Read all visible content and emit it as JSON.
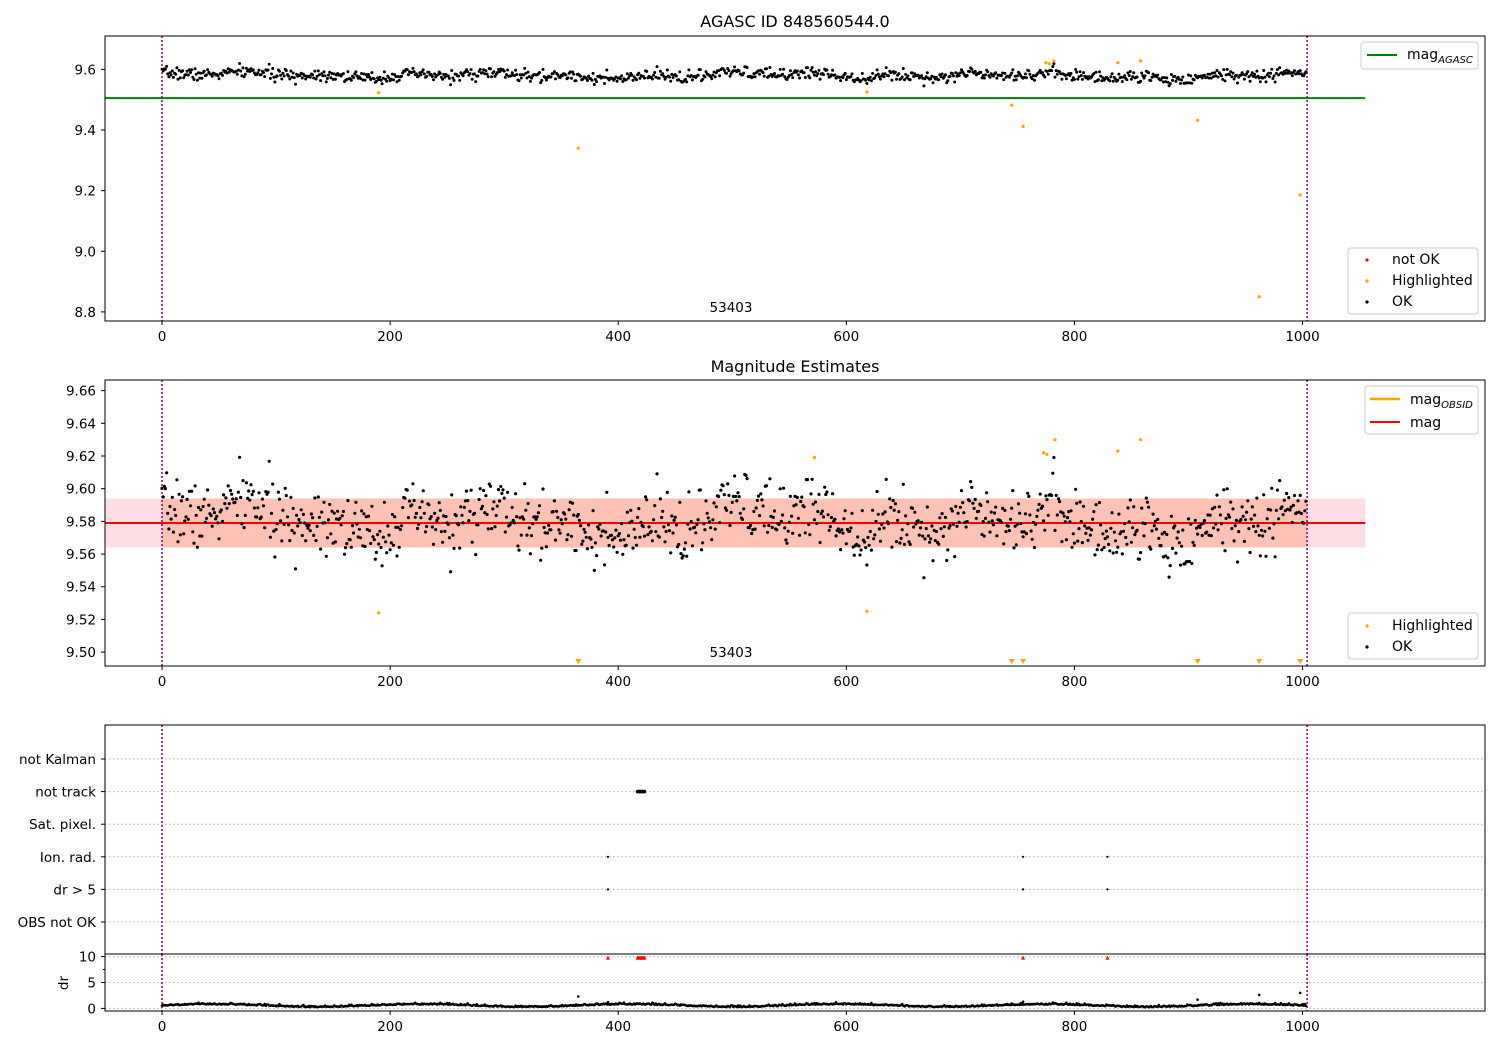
{
  "colors": {
    "ok": "#000000",
    "highlighted": "#ffa500",
    "not_ok": "#ff0000",
    "agasc_line": "#008000",
    "mag_line": "#ff0000",
    "obsid_line": "#ffa500",
    "band_pink": "#ffc0cb",
    "band_orange": "#ffa07a",
    "obsid_marker": "#800080"
  },
  "chart_data": [
    {
      "type": "scatter",
      "title": "AGASC ID 848560544.0",
      "xlim": [
        -50,
        1160
      ],
      "ylim": [
        8.77,
        9.71
      ],
      "xticks": [
        0,
        200,
        400,
        600,
        800,
        1000
      ],
      "yticks": [
        8.8,
        9.0,
        9.2,
        9.4,
        9.6
      ],
      "ytick_labels": [
        "8.8",
        "9.0",
        "9.2",
        "9.4",
        "9.6"
      ],
      "obsid_boundaries": [
        0,
        1004
      ],
      "obsid_label": "53403",
      "hlines": [
        {
          "name": "mag_AGASC",
          "y": 9.505,
          "x_range": [
            -50,
            1055
          ]
        }
      ],
      "legend_lines": [
        {
          "label": "mag",
          "sub": "AGASC",
          "color_key": "agasc_line"
        }
      ],
      "legend_points": [
        "not OK",
        "Highlighted",
        "OK"
      ],
      "ok_series": {
        "n": 1004,
        "base": 9.58,
        "amp": 0.018,
        "seed": 7
      },
      "highlighted_points": [
        {
          "x": 190,
          "y": 9.523
        },
        {
          "x": 365,
          "y": 9.34
        },
        {
          "x": 618,
          "y": 9.525
        },
        {
          "x": 745,
          "y": 9.482
        },
        {
          "x": 755,
          "y": 9.412
        },
        {
          "x": 775,
          "y": 9.622
        },
        {
          "x": 778,
          "y": 9.618
        },
        {
          "x": 782,
          "y": 9.628
        },
        {
          "x": 838,
          "y": 9.622
        },
        {
          "x": 858,
          "y": 9.628
        },
        {
          "x": 908,
          "y": 9.432
        },
        {
          "x": 962,
          "y": 8.85
        },
        {
          "x": 998,
          "y": 9.186
        }
      ]
    },
    {
      "type": "scatter",
      "title": "Magnitude Estimates",
      "xlim": [
        -50,
        1160
      ],
      "ylim": [
        9.4915,
        9.6665
      ],
      "xticks": [
        0,
        200,
        400,
        600,
        800,
        1000
      ],
      "yticks": [
        9.5,
        9.52,
        9.54,
        9.56,
        9.58,
        9.6,
        9.62,
        9.64,
        9.66
      ],
      "ytick_labels": [
        "9.50",
        "9.52",
        "9.54",
        "9.56",
        "9.58",
        "9.60",
        "9.62",
        "9.64",
        "9.66"
      ],
      "obsid_boundaries": [
        0,
        1004
      ],
      "obsid_label": "53403",
      "mag": 9.579,
      "mag_band": [
        9.564,
        9.594
      ],
      "obsid_band": [
        9.564,
        9.594
      ],
      "band_x_range": [
        -50,
        1055
      ],
      "legend_lines": [
        {
          "label": "mag",
          "sub": "OBSID",
          "color_key": "obsid_line"
        },
        {
          "label": "mag",
          "sub": "",
          "color_key": "mag_line"
        }
      ],
      "legend_points": [
        "Highlighted",
        "OK"
      ],
      "ok_series": {
        "n": 1004,
        "base": 9.58,
        "amp": 0.018,
        "seed": 7
      },
      "highlighted_points": [
        {
          "x": 190,
          "y": 9.524
        },
        {
          "x": 572,
          "y": 9.619
        },
        {
          "x": 618,
          "y": 9.525
        },
        {
          "x": 773,
          "y": 9.622
        },
        {
          "x": 776,
          "y": 9.621
        },
        {
          "x": 783,
          "y": 9.63
        },
        {
          "x": 838,
          "y": 9.623
        },
        {
          "x": 858,
          "y": 9.63
        }
      ],
      "below_range_markers": [
        365,
        745,
        755,
        908,
        962,
        998
      ]
    },
    {
      "type": "scatter",
      "flags": [
        "not Kalman",
        "not track",
        "Sat. pixel.",
        "Ion. rad.",
        "dr > 5",
        "OBS not OK"
      ],
      "flag_points": {
        "not track": [
          417,
          418,
          419,
          420,
          421,
          422,
          423
        ],
        "Ion. rad.": [
          391,
          755,
          829
        ],
        "dr > 5": [
          391,
          755,
          829
        ]
      },
      "xlim": [
        -50,
        1160
      ],
      "xticks": [
        0,
        200,
        400,
        600,
        800,
        1000
      ],
      "obsid_boundaries": [
        0,
        1004
      ],
      "dr_ylabel": "dr",
      "dr_ylim": [
        -0.5,
        10.5
      ],
      "dr_yticks": [
        0,
        5,
        10
      ],
      "dr_ytick_labels": [
        "0",
        "5",
        "10"
      ],
      "dr_clipped": [
        391,
        417,
        418,
        419,
        420,
        421,
        422,
        423,
        755,
        829
      ],
      "dr_outliers": [
        {
          "x": 365,
          "y": 2.3
        },
        {
          "x": 908,
          "y": 1.7
        },
        {
          "x": 962,
          "y": 2.6
        },
        {
          "x": 998,
          "y": 3.0
        },
        {
          "x": 391,
          "y": 1.2
        },
        {
          "x": 755,
          "y": 1.3
        }
      ],
      "dr_series": {
        "n": 1004,
        "base": 0.5,
        "amp": 0.25,
        "seed": 11
      }
    }
  ]
}
